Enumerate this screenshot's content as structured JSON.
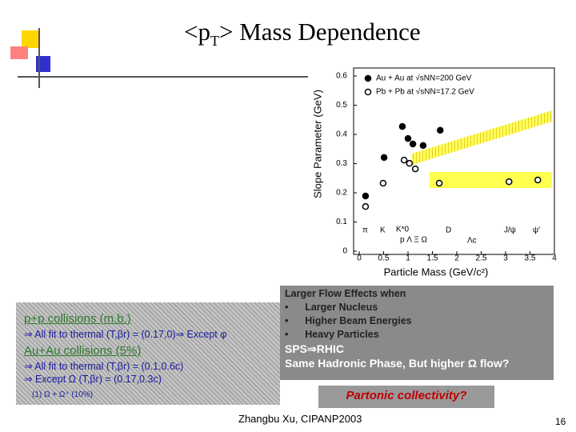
{
  "slide": {
    "title_prefix": "<p",
    "title_sub": "T",
    "title_suffix": "> Mass Dependence",
    "left_box": {
      "heading1": "p+p collisions (m.b.)",
      "line1": "⇒  All fit to thermal (T,βr) = (0.17,0)⇒  Except φ",
      "heading2": "Au+Au collisions (5%)",
      "line2": "⇒  All fit to thermal (T,βr) = (0.1,0.6c)",
      "line3": "⇒  Except Ω (T,βr) = (0.17,0.3c)",
      "note": "(1)  Ω + Ω⁺ (10%)"
    },
    "right_box": {
      "heading": "Larger Flow Effects when",
      "bullets": [
        "Larger Nucleus",
        "Higher Beam Energies",
        "Heavy Particles"
      ],
      "line1": "SPS⇒RHIC",
      "line2": "Same Hadronic Phase, But higher Ω flow?"
    },
    "callout": "Partonic collectivity?",
    "footer": "Zhangbu Xu, CIPANP2003",
    "page": "16"
  },
  "chart_data": {
    "type": "scatter",
    "x_label": "Particle Mass (GeV/c²)",
    "y_label": "Slope Parameter (GeV)",
    "xlim": [
      0,
      4
    ],
    "xticks": [
      0,
      0.5,
      1,
      1.5,
      2,
      2.5,
      3,
      3.5,
      4
    ],
    "ylim": [
      0,
      0.6
    ],
    "yticks": [
      0,
      0.1,
      0.2,
      0.3,
      0.4,
      0.5,
      0.6
    ],
    "series": [
      {
        "name": "Au + Au at √sNN=200 GeV",
        "color": "#000000",
        "marker": "filled",
        "x": [
          0.13,
          0.51,
          0.885,
          1.0,
          1.1,
          1.31,
          1.66
        ],
        "values": [
          0.189,
          0.321,
          0.427,
          0.386,
          0.367,
          0.362,
          0.414
        ]
      },
      {
        "name": "Pb + Pb at √sNN=17.2 GeV",
        "color": "#000000",
        "marker": "open",
        "x": [
          0.13,
          0.49,
          0.92,
          1.03,
          1.15,
          1.64,
          3.07,
          3.66
        ],
        "values": [
          0.153,
          0.233,
          0.312,
          0.301,
          0.282,
          0.233,
          0.238,
          0.244
        ]
      }
    ],
    "annotations": [
      "π",
      "K",
      "K*0",
      "D",
      "J/ψ",
      "ψ'",
      "p  Λ  Ξ   Ω",
      "Λc"
    ]
  }
}
